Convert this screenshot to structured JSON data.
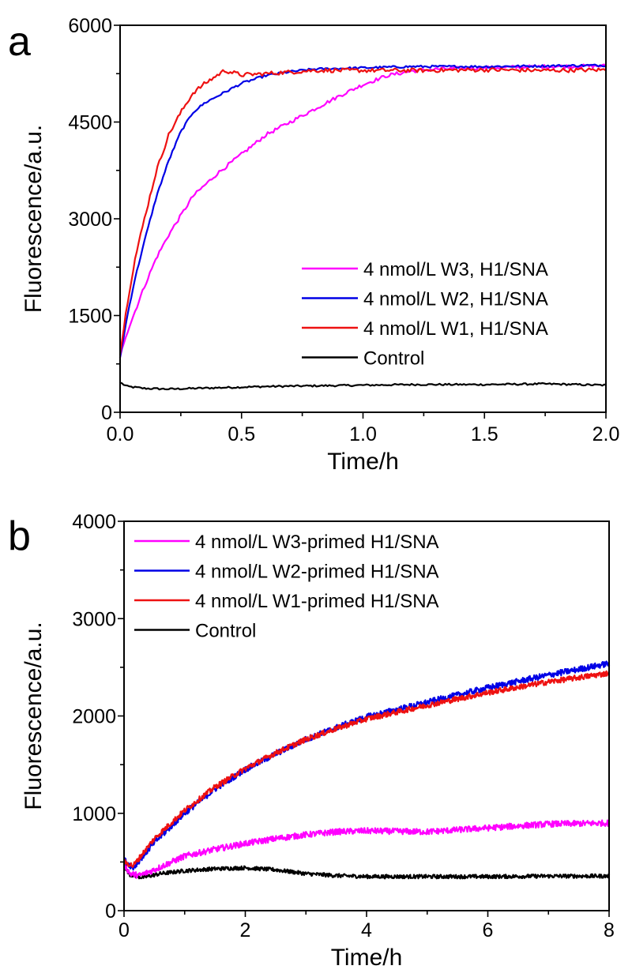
{
  "chart_data": [
    {
      "type": "line",
      "panel_label": "a",
      "title": "",
      "xlabel": "Time/h",
      "ylabel": "Fluorescence/a.u.",
      "xlim": [
        0,
        2.0
      ],
      "ylim": [
        0,
        6000
      ],
      "x_ticks": [
        0.0,
        0.5,
        1.0,
        1.5,
        2.0
      ],
      "x_tick_labels": [
        "0.0",
        "0.5",
        "1.0",
        "1.5",
        "2.0"
      ],
      "x_minor_step": 0.25,
      "y_ticks": [
        0,
        1500,
        3000,
        4500,
        6000
      ],
      "y_tick_labels": [
        "0",
        "1500",
        "3000",
        "4500",
        "6000"
      ],
      "y_minor_step": 750,
      "grid": false,
      "legend_position": "center-right",
      "series": [
        {
          "name": "4 nmol/L W3, H1/SNA",
          "color": "#ff00ff",
          "x": [
            0,
            0.02,
            0.05,
            0.1,
            0.15,
            0.2,
            0.25,
            0.3,
            0.4,
            0.5,
            0.6,
            0.7,
            0.8,
            0.9,
            1.0,
            1.1,
            1.2,
            1.3,
            1.5,
            1.75,
            2.0
          ],
          "y": [
            850,
            1150,
            1450,
            1950,
            2400,
            2750,
            3050,
            3350,
            3700,
            4000,
            4300,
            4500,
            4700,
            4900,
            5080,
            5220,
            5290,
            5320,
            5340,
            5360,
            5370
          ]
        },
        {
          "name": "4 nmol/L W2, H1/SNA",
          "color": "#0000e6",
          "x": [
            0,
            0.03,
            0.06,
            0.1,
            0.15,
            0.2,
            0.25,
            0.3,
            0.35,
            0.4,
            0.5,
            0.6,
            0.7,
            0.8,
            1.0,
            1.2,
            1.5,
            1.75,
            2.0
          ],
          "y": [
            850,
            1500,
            2050,
            2650,
            3350,
            3900,
            4350,
            4650,
            4800,
            4900,
            5100,
            5220,
            5280,
            5320,
            5340,
            5360,
            5360,
            5370,
            5380
          ]
        },
        {
          "name": "4 nmol/L W1, H1/SNA",
          "color": "#ee1111",
          "x": [
            0,
            0.03,
            0.06,
            0.1,
            0.15,
            0.2,
            0.25,
            0.3,
            0.35,
            0.43,
            0.5,
            0.6,
            0.8,
            1.0,
            1.25,
            1.5,
            1.75,
            2.0
          ],
          "y": [
            900,
            1700,
            2350,
            3000,
            3750,
            4300,
            4650,
            4950,
            5100,
            5300,
            5230,
            5250,
            5300,
            5300,
            5300,
            5310,
            5300,
            5310
          ]
        },
        {
          "name": "Control",
          "color": "#000000",
          "x": [
            0,
            0.03,
            0.1,
            0.2,
            0.4,
            0.6,
            0.8,
            1.0,
            1.2,
            1.5,
            1.75,
            2.0
          ],
          "y": [
            460,
            400,
            370,
            360,
            380,
            400,
            410,
            420,
            430,
            430,
            440,
            420
          ]
        }
      ]
    },
    {
      "type": "line",
      "panel_label": "b",
      "title": "",
      "xlabel": "Time/h",
      "ylabel": "Fluorescence/a.u.",
      "xlim": [
        0,
        8
      ],
      "ylim": [
        0,
        4000
      ],
      "x_ticks": [
        0,
        2,
        4,
        6,
        8
      ],
      "x_tick_labels": [
        "0",
        "2",
        "4",
        "6",
        "8"
      ],
      "x_minor_step": 1,
      "y_ticks": [
        0,
        1000,
        2000,
        3000,
        4000
      ],
      "y_tick_labels": [
        "0",
        "1000",
        "2000",
        "3000",
        "4000"
      ],
      "y_minor_step": 500,
      "grid": false,
      "legend_position": "top-left",
      "series": [
        {
          "name": "4 nmol/L W3-primed H1/SNA",
          "color": "#ff00ff",
          "x": [
            0,
            0.1,
            0.25,
            0.5,
            1.0,
            1.5,
            2.0,
            2.5,
            3.0,
            3.5,
            4.0,
            5.0,
            6.0,
            7.0,
            8.0
          ],
          "y": [
            480,
            380,
            360,
            420,
            560,
            630,
            690,
            740,
            780,
            810,
            820,
            810,
            850,
            890,
            900
          ]
        },
        {
          "name": "4 nmol/L W2-primed H1/SNA",
          "color": "#0000e6",
          "x": [
            0,
            0.15,
            0.5,
            1.0,
            1.5,
            2.0,
            2.5,
            3.0,
            3.5,
            4.0,
            5.0,
            6.0,
            7.0,
            8.0
          ],
          "y": [
            520,
            440,
            700,
            1000,
            1250,
            1450,
            1610,
            1760,
            1880,
            1990,
            2140,
            2290,
            2420,
            2540
          ]
        },
        {
          "name": "4 nmol/L W1-primed H1/SNA",
          "color": "#ee1111",
          "x": [
            0,
            0.15,
            0.5,
            1.0,
            1.5,
            2.0,
            2.5,
            3.0,
            3.5,
            4.0,
            5.0,
            6.0,
            7.0,
            8.0
          ],
          "y": [
            500,
            460,
            740,
            1030,
            1270,
            1460,
            1620,
            1760,
            1870,
            1970,
            2110,
            2240,
            2350,
            2440
          ]
        },
        {
          "name": "Control",
          "color": "#000000",
          "x": [
            0,
            0.1,
            0.3,
            0.6,
            1.0,
            1.5,
            2.0,
            2.5,
            3.0,
            3.5,
            4.0,
            5.0,
            6.0,
            7.0,
            8.0
          ],
          "y": [
            450,
            370,
            340,
            380,
            410,
            430,
            440,
            420,
            380,
            360,
            350,
            350,
            350,
            355,
            355
          ]
        }
      ]
    }
  ]
}
